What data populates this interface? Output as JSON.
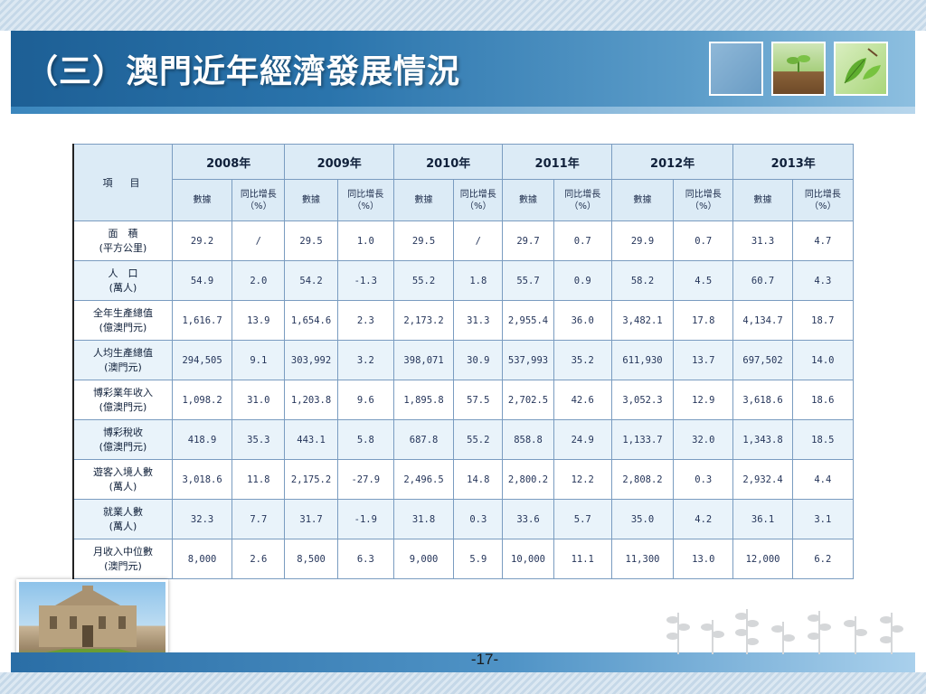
{
  "title": "（三）澳門近年經濟發展情況",
  "table": {
    "item_header": "項　目",
    "years": [
      "2008年",
      "2009年",
      "2010年",
      "2011年",
      "2012年",
      "2013年"
    ],
    "sub_value": "數據",
    "sub_growth_line1": "同比增長",
    "sub_growth_line2": "（%）",
    "rows": [
      {
        "label": "面　積",
        "unit": "(平方公里)",
        "values": [
          "29.2",
          "/",
          "29.5",
          "1.0",
          "29.5",
          "/",
          "29.7",
          "0.7",
          "29.9",
          "0.7",
          "31.3",
          "4.7"
        ]
      },
      {
        "label": "人　口",
        "unit": "(萬人)",
        "values": [
          "54.9",
          "2.0",
          "54.2",
          "-1.3",
          "55.2",
          "1.8",
          "55.7",
          "0.9",
          "58.2",
          "4.5",
          "60.7",
          "4.3"
        ]
      },
      {
        "label": "全年生產總值",
        "unit": "(億澳門元)",
        "values": [
          "1,616.7",
          "13.9",
          "1,654.6",
          "2.3",
          "2,173.2",
          "31.3",
          "2,955.4",
          "36.0",
          "3,482.1",
          "17.8",
          "4,134.7",
          "18.7"
        ]
      },
      {
        "label": "人均生產總值",
        "unit": "(澳門元)",
        "values": [
          "294,505",
          "9.1",
          "303,992",
          "3.2",
          "398,071",
          "30.9",
          "537,993",
          "35.2",
          "611,930",
          "13.7",
          "697,502",
          "14.0"
        ]
      },
      {
        "label": "博彩業年收入",
        "unit": "(億澳門元)",
        "values": [
          "1,098.2",
          "31.0",
          "1,203.8",
          "9.6",
          "1,895.8",
          "57.5",
          "2,702.5",
          "42.6",
          "3,052.3",
          "12.9",
          "3,618.6",
          "18.6"
        ]
      },
      {
        "label": "博彩稅收",
        "unit": "(億澳門元)",
        "values": [
          "418.9",
          "35.3",
          "443.1",
          "5.8",
          "687.8",
          "55.2",
          "858.8",
          "24.9",
          "1,133.7",
          "32.0",
          "1,343.8",
          "18.5"
        ]
      },
      {
        "label": "遊客入境人數",
        "unit": "(萬人)",
        "values": [
          "3,018.6",
          "11.8",
          "2,175.2",
          "-27.9",
          "2,496.5",
          "14.8",
          "2,800.2",
          "12.2",
          "2,808.2",
          "0.3",
          "2,932.4",
          "4.4"
        ]
      },
      {
        "label": "就業人數",
        "unit": "(萬人)",
        "values": [
          "32.3",
          "7.7",
          "31.7",
          "-1.9",
          "31.8",
          "0.3",
          "33.6",
          "5.7",
          "35.0",
          "4.2",
          "36.1",
          "3.1"
        ]
      },
      {
        "label": "月收入中位數",
        "unit": "(澳門元)",
        "values": [
          "8,000",
          "2.6",
          "8,500",
          "6.3",
          "9,000",
          "5.9",
          "10,000",
          "11.1",
          "11,300",
          "13.0",
          "12,000",
          "6.2"
        ]
      }
    ]
  },
  "page_number": "-17-",
  "colors": {
    "header_blue": "#1d5f95",
    "table_header_bg": "#dcebf6",
    "table_border": "#7a9cc0",
    "alt_row_bg": "#e9f3fa"
  },
  "icons": {
    "thumb_1": "plain-blue-square",
    "thumb_2": "sprout-image",
    "thumb_3": "leaf-image",
    "photo": "ruins-of-st-paul-photo",
    "decor": "plant-silhouettes"
  }
}
